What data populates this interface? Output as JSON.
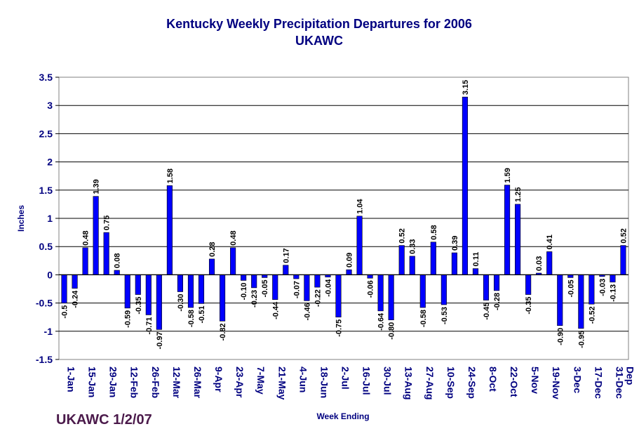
{
  "chart_data": {
    "type": "bar",
    "title": "Kentucky Weekly Precipitation Departures for 2006",
    "subtitle": "UKAWC",
    "xlabel": "Week Ending",
    "ylabel": "Inches",
    "ylim": [
      -1.5,
      3.5
    ],
    "yticks": [
      "3.5",
      "3",
      "2.5",
      "2",
      "1.5",
      "1",
      "0.5",
      "0",
      "-0.5",
      "-1",
      "-1.5"
    ],
    "grid": true,
    "bar_color": "#0000ff",
    "values": [
      -0.5,
      -0.24,
      0.48,
      1.39,
      0.75,
      0.08,
      -0.59,
      -0.35,
      -0.71,
      -0.97,
      1.58,
      -0.3,
      -0.58,
      -0.51,
      0.28,
      -0.82,
      0.48,
      -0.1,
      -0.23,
      -0.05,
      -0.44,
      0.17,
      -0.07,
      -0.46,
      -0.22,
      -0.04,
      -0.75,
      0.09,
      1.04,
      -0.06,
      -0.64,
      -0.8,
      0.52,
      0.33,
      -0.58,
      0.58,
      -0.53,
      0.39,
      3.15,
      0.11,
      -0.45,
      -0.28,
      1.59,
      1.25,
      -0.35,
      0.03,
      0.41,
      -0.9,
      -0.05,
      -0.95,
      -0.52,
      -0.03,
      -0.13,
      0.52
    ],
    "value_labels": [
      "-0.5",
      "-0.24",
      "0.48",
      "1.39",
      "0.75",
      "0.08",
      "-0.59",
      "-0.35",
      "-0.71",
      "-0.97",
      "1.58",
      "-0.30",
      "-0.58",
      "-0.51",
      "0.28",
      "-0.82",
      "0.48",
      "-0.10",
      "-0.23",
      "-0.05",
      "-0.44",
      "0.17",
      "-0.07",
      "-0.46",
      "-0.22",
      "-0.04",
      "-0.75",
      "0.09",
      "1.04",
      "-0.06",
      "-0.64",
      "-0.80",
      "0.52",
      "0.33",
      "-0.58",
      "0.58",
      "-0.53",
      "0.39",
      "3.15",
      "0.11",
      "-0.45",
      "-0.28",
      "1.59",
      "1.25",
      "-0.35",
      "0.03",
      "0.41",
      "-0.90",
      "-0.05",
      "-0.95",
      "-0.52",
      "-0.03",
      "-0.13",
      "0.52"
    ],
    "category_labels": [
      "1-Jan",
      "15-Jan",
      "29-Jan",
      "12-Feb",
      "26-Feb",
      "12-Mar",
      "26-Mar",
      "9-Apr",
      "23-Apr",
      "7-May",
      "21-May",
      "4-Jun",
      "18-Jun",
      "2-Jul",
      "16-Jul",
      "30-Jul",
      "13-Aug",
      "27-Aug",
      "10-Sep",
      "24-Sep",
      "8-Oct",
      "22-Oct",
      "5-Nov",
      "19-Nov",
      "3-Dec",
      "17-Dec",
      "31-Dec",
      "Dep"
    ]
  },
  "footer": "UKAWC 1/2/07"
}
